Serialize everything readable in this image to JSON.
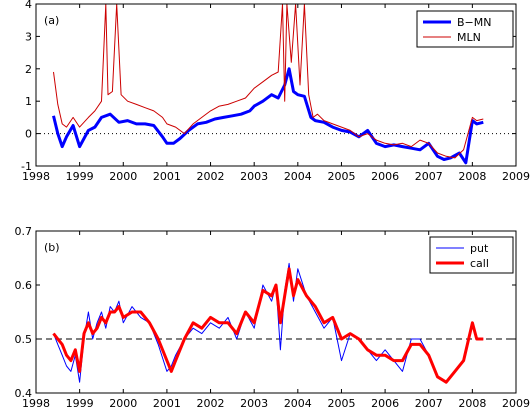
{
  "chart_data": [
    {
      "type": "line",
      "panel_label": "(a)",
      "xlim": [
        1998,
        2009
      ],
      "ylim": [
        -1,
        4
      ],
      "xticks": [
        "1998",
        "1999",
        "2000",
        "2001",
        "2002",
        "2003",
        "2004",
        "2005",
        "2006",
        "2007",
        "2008",
        "2009"
      ],
      "yticks": [
        "-1",
        "0",
        "1",
        "2",
        "3",
        "4"
      ],
      "reference_line": {
        "y": 0,
        "style": "dotted"
      },
      "legend_position": "top-right",
      "series": [
        {
          "name": "B−MN",
          "color": "#0000ff",
          "width": "thick",
          "x": [
            1998.4,
            1998.5,
            1998.6,
            1998.7,
            1998.85,
            1999.0,
            1999.2,
            1999.35,
            1999.5,
            1999.7,
            1999.9,
            2000.1,
            2000.3,
            2000.5,
            2000.7,
            2000.9,
            2001.0,
            2001.15,
            2001.3,
            2001.5,
            2001.7,
            2001.9,
            2002.1,
            2002.3,
            2002.5,
            2002.7,
            2002.9,
            2003.0,
            2003.2,
            2003.4,
            2003.55,
            2003.7,
            2003.8,
            2003.9,
            2004.0,
            2004.15,
            2004.3,
            2004.4,
            2004.6,
            2004.8,
            2005.0,
            2005.2,
            2005.4,
            2005.6,
            2005.8,
            2006.0,
            2006.2,
            2006.4,
            2006.6,
            2006.8,
            2007.0,
            2007.2,
            2007.35,
            2007.5,
            2007.7,
            2007.85,
            2008.0,
            2008.1,
            2008.25
          ],
          "y": [
            0.55,
            0.0,
            -0.4,
            -0.1,
            0.25,
            -0.4,
            0.1,
            0.2,
            0.5,
            0.6,
            0.35,
            0.4,
            0.3,
            0.3,
            0.25,
            -0.1,
            -0.3,
            -0.3,
            -0.15,
            0.1,
            0.3,
            0.35,
            0.45,
            0.5,
            0.55,
            0.6,
            0.7,
            0.85,
            1.0,
            1.2,
            1.1,
            1.5,
            2.0,
            1.3,
            1.2,
            1.15,
            0.5,
            0.4,
            0.35,
            0.2,
            0.1,
            0.05,
            -0.1,
            0.1,
            -0.3,
            -0.4,
            -0.35,
            -0.4,
            -0.45,
            -0.5,
            -0.3,
            -0.7,
            -0.8,
            -0.75,
            -0.6,
            -0.9,
            0.4,
            0.3,
            0.35
          ]
        },
        {
          "name": "MLN",
          "color": "#cc0000",
          "width": "thin",
          "x": [
            1998.4,
            1998.5,
            1998.6,
            1998.7,
            1998.85,
            1999.0,
            1999.2,
            1999.35,
            1999.5,
            1999.6,
            1999.65,
            1999.75,
            1999.85,
            1999.95,
            2000.1,
            2000.3,
            2000.5,
            2000.7,
            2000.9,
            2001.0,
            2001.2,
            2001.4,
            2001.6,
            2001.8,
            2002.0,
            2002.2,
            2002.4,
            2002.6,
            2002.8,
            2003.0,
            2003.2,
            2003.4,
            2003.55,
            2003.65,
            2003.7,
            2003.75,
            2003.85,
            2003.95,
            2004.05,
            2004.15,
            2004.25,
            2004.35,
            2004.45,
            2004.6,
            2004.8,
            2005.0,
            2005.2,
            2005.4,
            2005.6,
            2005.8,
            2006.0,
            2006.2,
            2006.4,
            2006.6,
            2006.8,
            2007.0,
            2007.2,
            2007.4,
            2007.6,
            2007.8,
            2008.0,
            2008.1,
            2008.25
          ],
          "y": [
            1.9,
            0.9,
            0.3,
            0.2,
            0.5,
            0.2,
            0.5,
            0.7,
            1.0,
            4.0,
            1.2,
            1.3,
            4.0,
            1.2,
            1.0,
            0.9,
            0.8,
            0.7,
            0.5,
            0.3,
            0.2,
            0.0,
            0.3,
            0.5,
            0.7,
            0.85,
            0.9,
            1.0,
            1.1,
            1.4,
            1.6,
            1.8,
            1.9,
            4.0,
            1.0,
            4.0,
            2.2,
            4.0,
            1.5,
            4.0,
            1.2,
            0.5,
            0.6,
            0.4,
            0.3,
            0.2,
            0.1,
            -0.1,
            0.0,
            -0.2,
            -0.3,
            -0.35,
            -0.3,
            -0.4,
            -0.2,
            -0.3,
            -0.6,
            -0.7,
            -0.75,
            -0.5,
            0.5,
            0.4,
            0.45
          ]
        }
      ]
    },
    {
      "type": "line",
      "panel_label": "(b)",
      "xlim": [
        1998,
        2009
      ],
      "ylim": [
        0.4,
        0.7
      ],
      "xticks": [
        "1998",
        "1999",
        "2000",
        "2001",
        "2002",
        "2003",
        "2004",
        "2005",
        "2006",
        "2007",
        "2008",
        "2009"
      ],
      "yticks": [
        "0.4",
        "0.5",
        "0.6",
        "0.7"
      ],
      "reference_line": {
        "y": 0.5,
        "style": "dashed"
      },
      "legend_position": "top-right",
      "series": [
        {
          "name": "put",
          "color": "#0000ff",
          "width": "thin",
          "x": [
            1998.4,
            1998.5,
            1998.6,
            1998.7,
            1998.8,
            1998.9,
            1999.0,
            1999.1,
            1999.2,
            1999.3,
            1999.4,
            1999.5,
            1999.6,
            1999.7,
            1999.8,
            1999.9,
            2000.0,
            2000.2,
            2000.4,
            2000.6,
            2000.8,
            2001.0,
            2001.1,
            2001.2,
            2001.4,
            2001.6,
            2001.8,
            2002.0,
            2002.2,
            2002.4,
            2002.6,
            2002.8,
            2003.0,
            2003.2,
            2003.4,
            2003.5,
            2003.6,
            2003.7,
            2003.8,
            2003.9,
            2004.0,
            2004.2,
            2004.4,
            2004.6,
            2004.8,
            2005.0,
            2005.2,
            2005.4,
            2005.6,
            2005.8,
            2006.0,
            2006.2,
            2006.4,
            2006.6,
            2006.8,
            2007.0,
            2007.2,
            2007.4,
            2007.6,
            2007.8,
            2008.0,
            2008.1,
            2008.25
          ],
          "y": [
            0.51,
            0.49,
            0.47,
            0.45,
            0.44,
            0.47,
            0.42,
            0.5,
            0.55,
            0.5,
            0.53,
            0.55,
            0.52,
            0.56,
            0.55,
            0.57,
            0.53,
            0.56,
            0.54,
            0.53,
            0.49,
            0.44,
            0.45,
            0.47,
            0.5,
            0.52,
            0.51,
            0.53,
            0.52,
            0.54,
            0.5,
            0.55,
            0.52,
            0.6,
            0.57,
            0.6,
            0.48,
            0.59,
            0.64,
            0.57,
            0.63,
            0.58,
            0.55,
            0.52,
            0.54,
            0.46,
            0.51,
            0.5,
            0.48,
            0.46,
            0.48,
            0.46,
            0.44,
            0.5,
            0.5,
            0.47,
            0.43,
            0.42,
            0.44,
            0.46,
            0.53,
            0.5,
            0.5
          ]
        },
        {
          "name": "call",
          "color": "#ff0000",
          "width": "thick",
          "x": [
            1998.4,
            1998.5,
            1998.6,
            1998.7,
            1998.8,
            1998.9,
            1999.0,
            1999.1,
            1999.2,
            1999.3,
            1999.4,
            1999.5,
            1999.6,
            1999.7,
            1999.8,
            1999.9,
            2000.0,
            2000.2,
            2000.4,
            2000.6,
            2000.8,
            2001.0,
            2001.1,
            2001.2,
            2001.4,
            2001.6,
            2001.8,
            2002.0,
            2002.2,
            2002.4,
            2002.6,
            2002.8,
            2003.0,
            2003.2,
            2003.4,
            2003.5,
            2003.6,
            2003.7,
            2003.8,
            2003.9,
            2004.0,
            2004.2,
            2004.4,
            2004.6,
            2004.8,
            2005.0,
            2005.2,
            2005.4,
            2005.6,
            2005.8,
            2006.0,
            2006.2,
            2006.4,
            2006.6,
            2006.8,
            2007.0,
            2007.2,
            2007.4,
            2007.6,
            2007.8,
            2008.0,
            2008.1,
            2008.25
          ],
          "y": [
            0.51,
            0.5,
            0.49,
            0.47,
            0.46,
            0.48,
            0.44,
            0.51,
            0.53,
            0.51,
            0.52,
            0.54,
            0.53,
            0.55,
            0.55,
            0.56,
            0.54,
            0.55,
            0.55,
            0.53,
            0.5,
            0.46,
            0.44,
            0.46,
            0.5,
            0.53,
            0.52,
            0.54,
            0.53,
            0.53,
            0.51,
            0.55,
            0.53,
            0.59,
            0.58,
            0.6,
            0.53,
            0.58,
            0.63,
            0.58,
            0.61,
            0.58,
            0.56,
            0.53,
            0.54,
            0.5,
            0.51,
            0.5,
            0.48,
            0.47,
            0.47,
            0.46,
            0.46,
            0.49,
            0.49,
            0.47,
            0.43,
            0.42,
            0.44,
            0.46,
            0.53,
            0.5,
            0.5
          ]
        }
      ]
    }
  ]
}
